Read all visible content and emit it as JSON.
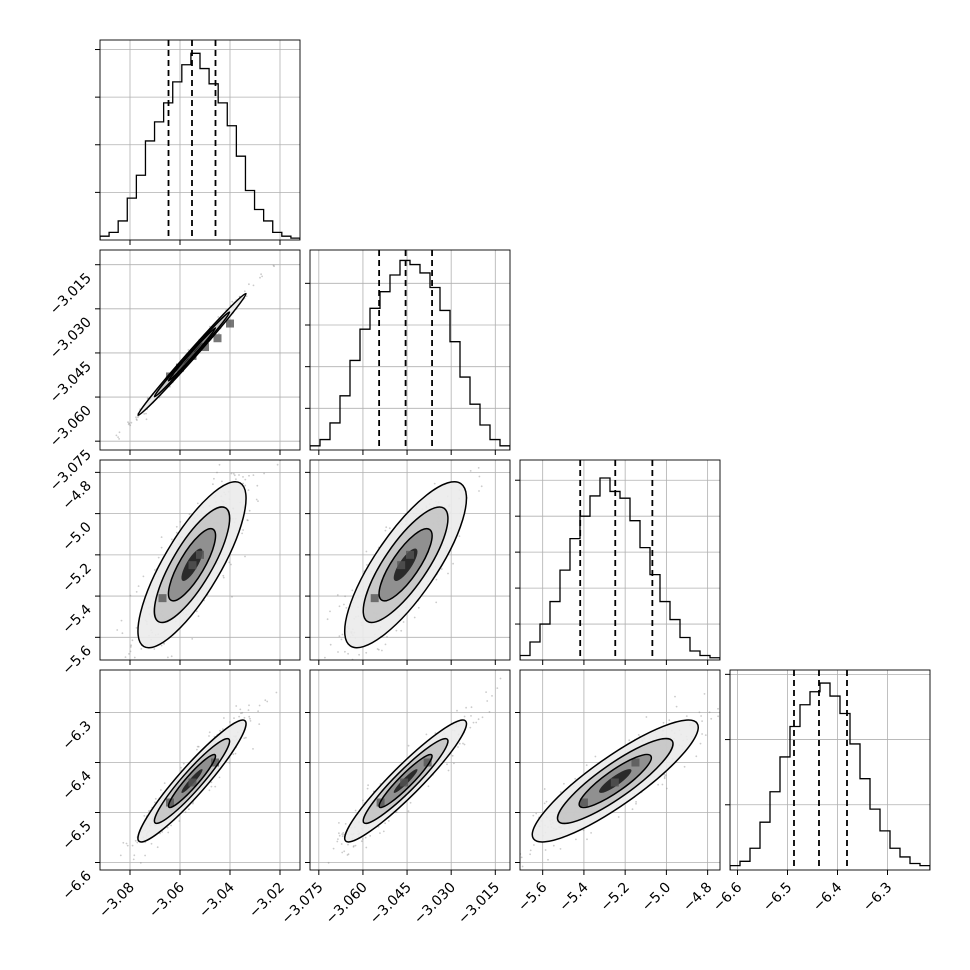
{
  "chart_data": {
    "type": "corner",
    "n_params": 4,
    "grid": true,
    "colors": {
      "line": "#000000",
      "grid": "#b0b0b0",
      "scatter": "#8c8c8c",
      "background": "#ffffff"
    },
    "parameters": [
      {
        "index": 0,
        "range": [
          -3.092,
          -3.012
        ],
        "ticks": [
          -3.08,
          -3.06,
          -3.04,
          -3.02
        ],
        "tick_labels": [
          "−3.08",
          "−3.06",
          "−3.04",
          "−3.02"
        ],
        "quantiles": [
          -3.0646,
          -3.0552,
          -3.0458
        ],
        "histogram_bins": [
          0.2,
          0.4,
          1.0,
          2.2,
          3.4,
          5.2,
          6.2,
          7.2,
          8.3,
          9.2,
          9.8,
          9.0,
          8.2,
          7.2,
          6.0,
          4.4,
          2.6,
          1.6,
          1.0,
          0.4,
          0.2,
          0.1
        ],
        "hist_ymax": 10.5,
        "hist_yticks": [
          2.5,
          5,
          7.5,
          10
        ]
      },
      {
        "index": 1,
        "range": [
          -3.078,
          -3.01
        ],
        "ticks": [
          -3.075,
          -3.06,
          -3.045,
          -3.03,
          -3.015
        ],
        "tick_labels": [
          "−3.075",
          "−3.060",
          "−3.045",
          "−3.030",
          "−3.015"
        ],
        "quantiles": [
          -3.0545,
          -3.0455,
          -3.0365
        ],
        "histogram_bins": [
          0.2,
          0.5,
          1.3,
          2.6,
          4.3,
          5.8,
          6.8,
          7.6,
          8.4,
          9.1,
          8.9,
          8.5,
          7.8,
          6.7,
          5.2,
          3.5,
          2.2,
          1.2,
          0.5,
          0.2
        ],
        "hist_ymax": 9.6,
        "hist_yticks": [
          2,
          4,
          6,
          8
        ]
      },
      {
        "index": 2,
        "range": [
          -5.71,
          -4.74
        ],
        "ticks": [
          -5.6,
          -5.4,
          -5.2,
          -5.0,
          -4.8
        ],
        "tick_labels": [
          "−5.6",
          "−5.4",
          "−5.2",
          "−5.0",
          "−4.8"
        ],
        "quantiles": [
          -5.418,
          -5.248,
          -5.068
        ],
        "histogram_bins": [
          0.2,
          0.8,
          1.6,
          2.6,
          4.0,
          5.4,
          6.4,
          7.3,
          8.1,
          7.5,
          7.2,
          6.2,
          5.0,
          3.8,
          2.6,
          1.8,
          1.0,
          0.4,
          0.2,
          0.1
        ],
        "hist_ymax": 8.9,
        "hist_yticks": [
          1.6,
          3.2,
          4.8,
          6.4,
          8.0
        ]
      },
      {
        "index": 3,
        "range": [
          -6.615,
          -6.215
        ],
        "ticks": [
          -6.6,
          -6.5,
          -6.4,
          -6.3
        ],
        "tick_labels": [
          "−6.6",
          "−6.5",
          "−6.4",
          "−6.3"
        ],
        "quantiles": [
          -6.487,
          -6.437,
          -6.381
        ],
        "histogram_bins": [
          0.2,
          0.4,
          1.0,
          2.2,
          3.6,
          5.2,
          6.6,
          7.6,
          8.2,
          8.6,
          8.0,
          7.2,
          5.8,
          4.2,
          2.8,
          1.8,
          1.0,
          0.6,
          0.3,
          0.2
        ],
        "hist_ymax": 9.2,
        "hist_yticks": [
          3,
          6,
          9
        ]
      }
    ],
    "scatter_panels": [
      {
        "row": 1,
        "col": 0,
        "center": [
          -3.0552,
          -3.0455
        ],
        "sigma": [
          0.0094,
          0.009
        ],
        "correlation": 0.995,
        "hotspots": [
          [
            -3.064,
            -3.053
          ],
          [
            -3.06,
            -3.05
          ],
          [
            -3.055,
            -3.046
          ],
          [
            -3.05,
            -3.043
          ],
          [
            -3.045,
            -3.04
          ],
          [
            -3.04,
            -3.035
          ]
        ]
      },
      {
        "row": 2,
        "col": 0,
        "center": [
          -3.0552,
          -5.248
        ],
        "sigma": [
          0.0094,
          0.175
        ],
        "correlation": 0.8,
        "hotspots": [
          [
            -3.067,
            -5.41
          ],
          [
            -3.055,
            -5.25
          ],
          [
            -3.052,
            -5.2
          ]
        ]
      },
      {
        "row": 2,
        "col": 1,
        "center": [
          -3.0455,
          -5.248
        ],
        "sigma": [
          0.009,
          0.175
        ],
        "correlation": 0.8,
        "hotspots": [
          [
            -3.056,
            -5.41
          ],
          [
            -3.047,
            -5.25
          ],
          [
            -3.044,
            -5.2
          ]
        ]
      },
      {
        "row": 3,
        "col": 0,
        "center": [
          -3.0552,
          -6.437
        ],
        "sigma": [
          0.0094,
          0.053
        ],
        "correlation": 0.94,
        "hotspots": [
          [
            -3.064,
            -6.48
          ],
          [
            -3.055,
            -6.44
          ],
          [
            -3.046,
            -6.4
          ]
        ]
      },
      {
        "row": 3,
        "col": 1,
        "center": [
          -3.0455,
          -6.437
        ],
        "sigma": [
          0.009,
          0.053
        ],
        "correlation": 0.94,
        "hotspots": [
          [
            -3.054,
            -6.48
          ],
          [
            -3.046,
            -6.44
          ],
          [
            -3.038,
            -6.4
          ]
        ]
      },
      {
        "row": 3,
        "col": 2,
        "center": [
          -5.248,
          -6.437
        ],
        "sigma": [
          0.175,
          0.053
        ],
        "correlation": 0.88,
        "hotspots": [
          [
            -5.4,
            -6.48
          ],
          [
            -5.25,
            -6.44
          ],
          [
            -5.15,
            -6.4
          ]
        ]
      }
    ],
    "contour_levels_sigma": [
      1.0,
      1.6,
      2.3
    ],
    "scatter_points_per_panel": 420
  }
}
